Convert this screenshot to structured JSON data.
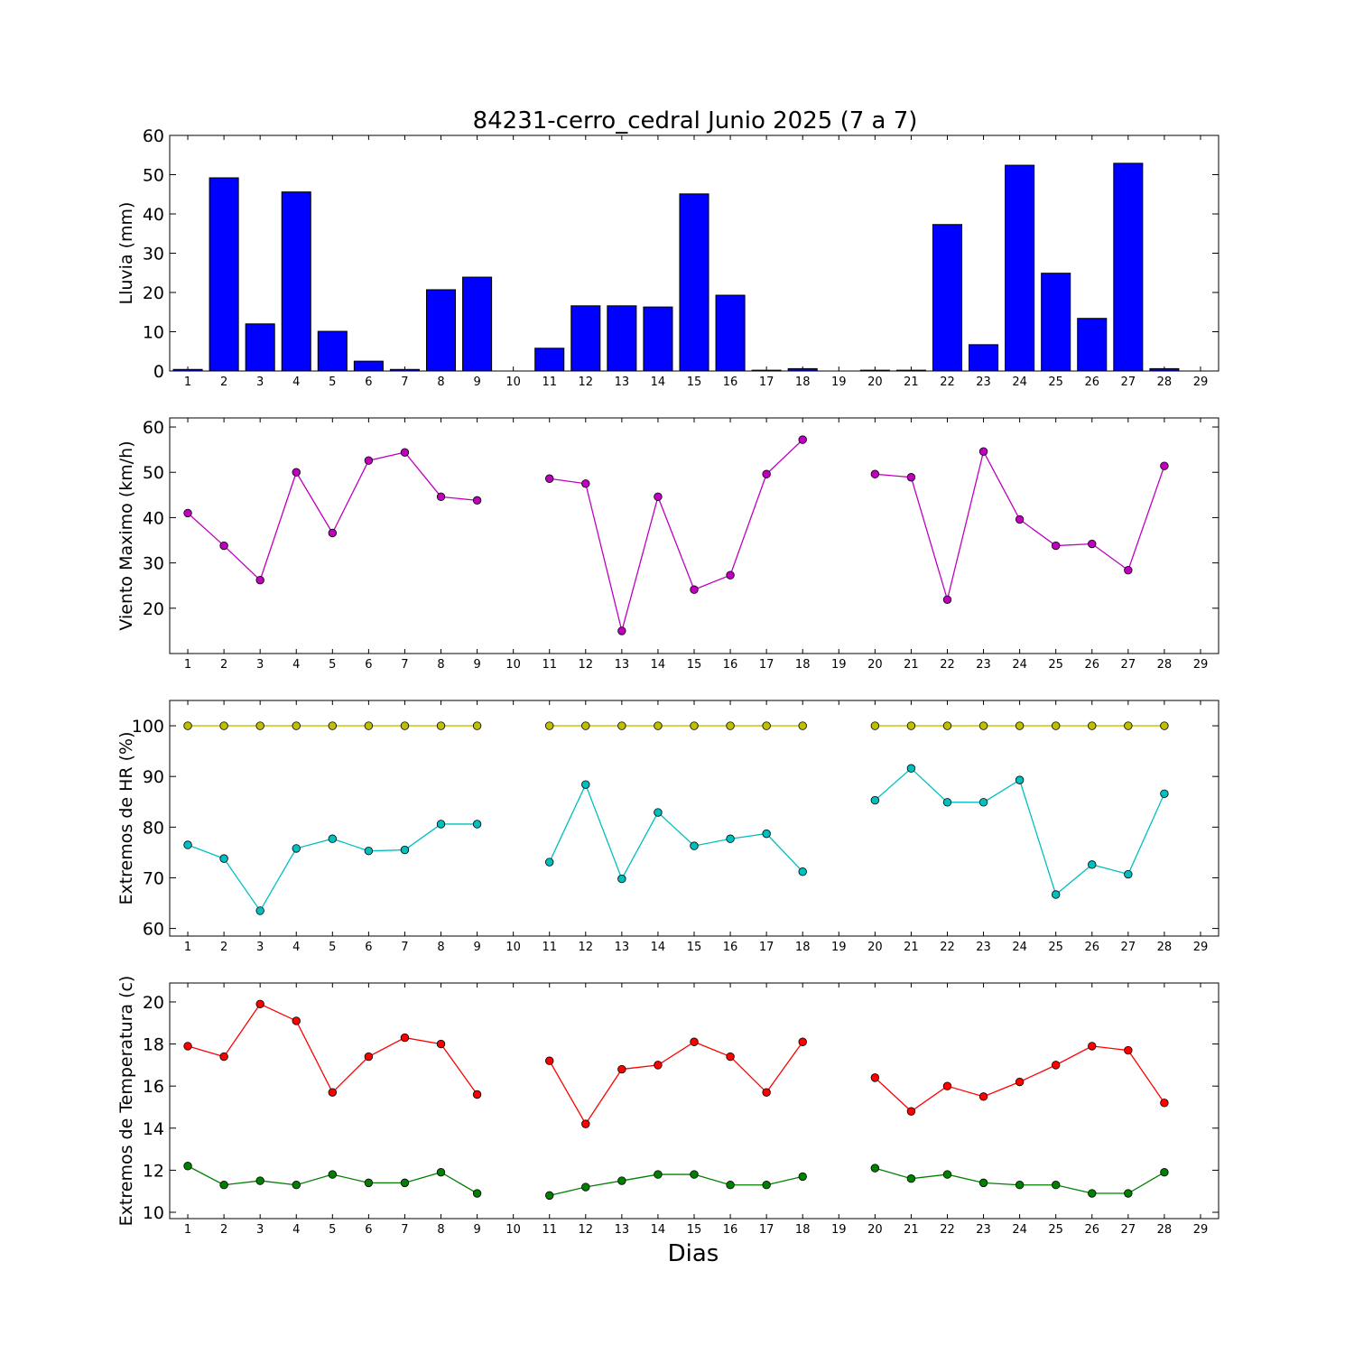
{
  "chart_data": {
    "title": "84231-cerro_cedral Junio 2025  (7 a 7)",
    "xlabel": "Dias",
    "x_ticks": [
      1,
      2,
      3,
      4,
      5,
      6,
      7,
      8,
      9,
      10,
      11,
      12,
      13,
      14,
      15,
      16,
      17,
      18,
      19,
      20,
      21,
      22,
      23,
      24,
      25,
      26,
      27,
      28,
      29
    ],
    "panels": [
      {
        "type": "bar",
        "ylabel": "Lluvia (mm)",
        "ylim": [
          0,
          60
        ],
        "yticks": [
          0,
          10,
          20,
          30,
          40,
          50,
          60
        ],
        "series": [
          {
            "name": "Lluvia",
            "color": "#0000ff",
            "values": [
              0.4,
              49.2,
              12.0,
              45.6,
              10.1,
              2.5,
              0.4,
              20.7,
              23.9,
              0,
              5.8,
              16.6,
              16.6,
              16.3,
              45.1,
              19.3,
              0.2,
              0.6,
              0,
              0.2,
              0.2,
              37.3,
              6.7,
              52.4,
              24.9,
              13.4,
              52.9,
              0.6,
              null
            ]
          }
        ]
      },
      {
        "type": "line",
        "ylabel": "Viento Maximo (km/h)",
        "ylim": [
          10,
          62
        ],
        "yticks": [
          20,
          30,
          40,
          50,
          60
        ],
        "series": [
          {
            "name": "Viento",
            "color": "#bf00bf",
            "values": [
              41.0,
              33.8,
              26.2,
              50.0,
              36.6,
              52.6,
              54.4,
              44.6,
              43.8,
              null,
              48.6,
              47.5,
              15.0,
              44.6,
              24.1,
              27.3,
              49.6,
              57.2,
              null,
              49.6,
              48.9,
              21.9,
              54.6,
              39.6,
              33.8,
              34.2,
              28.4,
              51.4,
              null
            ]
          }
        ]
      },
      {
        "type": "line",
        "ylabel": "Extremos de HR (%)",
        "ylim": [
          58.5,
          105
        ],
        "yticks": [
          60,
          70,
          80,
          90,
          100
        ],
        "series": [
          {
            "name": "HR max",
            "color": "#bfbf00",
            "values": [
              100,
              100,
              100,
              100,
              100,
              100,
              100,
              100,
              100,
              null,
              100,
              100,
              100,
              100,
              100,
              100,
              100,
              100,
              null,
              100,
              100,
              100,
              100,
              100,
              100,
              100,
              100,
              100,
              null
            ]
          },
          {
            "name": "HR min",
            "color": "#00bfbf",
            "values": [
              76.5,
              73.8,
              63.5,
              75.8,
              77.7,
              75.3,
              75.5,
              80.6,
              80.6,
              null,
              73.1,
              88.4,
              69.8,
              82.9,
              76.3,
              77.7,
              78.7,
              71.2,
              null,
              85.3,
              91.6,
              84.9,
              84.9,
              89.3,
              66.7,
              72.6,
              70.7,
              86.6,
              null
            ]
          }
        ]
      },
      {
        "type": "line",
        "ylabel": "Extremos de Temperatura (c)",
        "ylim": [
          9.7,
          20.9
        ],
        "yticks": [
          10,
          12,
          14,
          16,
          18,
          20
        ],
        "series": [
          {
            "name": "Temp max",
            "color": "#ff0000",
            "values": [
              17.9,
              17.4,
              19.9,
              19.1,
              15.7,
              17.4,
              18.3,
              18.0,
              15.6,
              null,
              17.2,
              14.2,
              16.8,
              17.0,
              18.1,
              17.4,
              15.7,
              18.1,
              null,
              16.4,
              14.8,
              16.0,
              15.5,
              16.2,
              17.0,
              17.9,
              17.7,
              15.2,
              null
            ]
          },
          {
            "name": "Temp min",
            "color": "#008000",
            "values": [
              12.2,
              11.3,
              11.5,
              11.3,
              11.8,
              11.4,
              11.4,
              11.9,
              10.9,
              null,
              10.8,
              11.2,
              11.5,
              11.8,
              11.8,
              11.3,
              11.3,
              11.7,
              null,
              12.1,
              11.6,
              11.8,
              11.4,
              11.3,
              11.3,
              10.9,
              10.9,
              11.9,
              null
            ]
          }
        ]
      }
    ]
  }
}
